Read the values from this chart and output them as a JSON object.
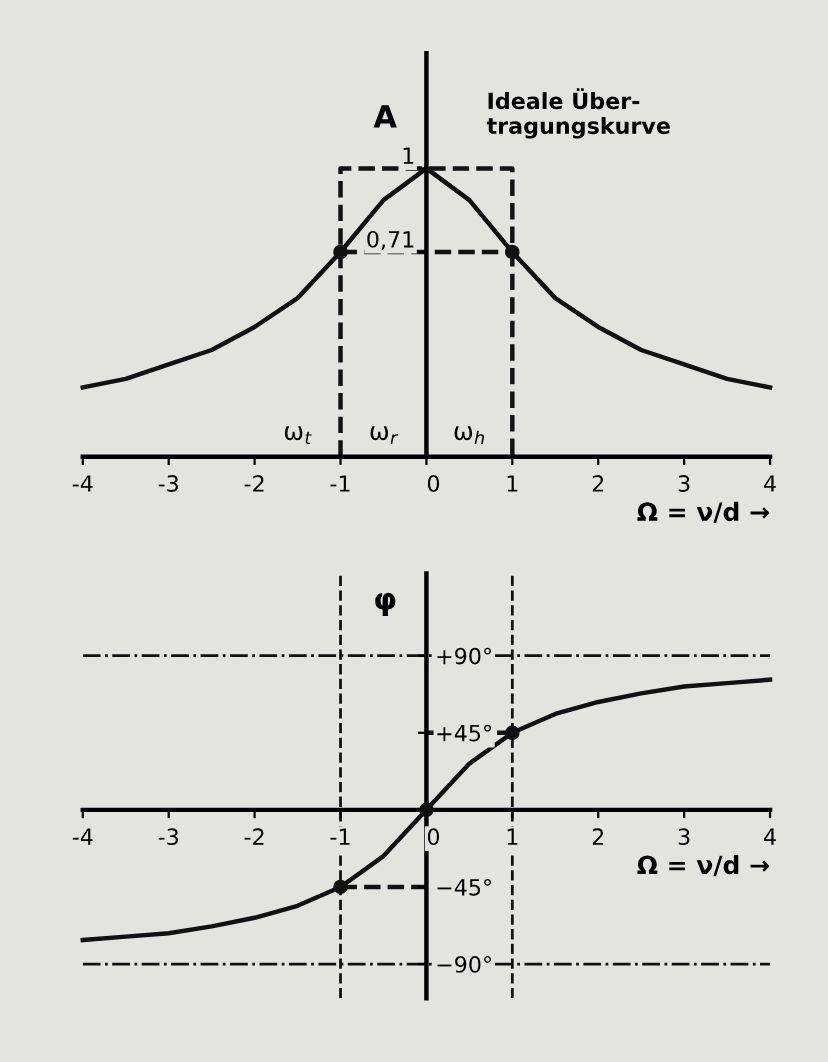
{
  "chart_data": [
    {
      "type": "line",
      "xlabel": "Ω = ν/d →",
      "ylabel": "A",
      "xlim": [
        -4,
        4
      ],
      "ylim": [
        0,
        1.4
      ],
      "xticks": [
        {
          "value": -4,
          "label": "-4"
        },
        {
          "value": -3,
          "label": "-3"
        },
        {
          "value": -2,
          "label": "-2"
        },
        {
          "value": -1,
          "label": "-1"
        },
        0,
        1,
        2,
        3,
        4
      ],
      "yticks": [
        {
          "value": 0.71,
          "label": "0,71"
        },
        1
      ],
      "grid": false,
      "legend": false,
      "series": [
        {
          "color": "#111111",
          "line_style": "solid",
          "x": [
            -4,
            -3.5,
            -3,
            -2.5,
            -2,
            -1.5,
            -1,
            -0.5,
            0,
            0.5,
            1,
            1.5,
            2,
            2.5,
            3,
            3.5,
            4
          ],
          "values": [
            0.24,
            0.27,
            0.32,
            0.37,
            0.45,
            0.55,
            0.71,
            0.89,
            1,
            0.89,
            0.71,
            0.55,
            0.45,
            0.37,
            0.32,
            0.27,
            0.24
          ]
        },
        {
          "color": "#111111",
          "line_style": "dashed",
          "x": [
            -1,
            -1,
            1,
            1
          ],
          "values": [
            0,
            1,
            1,
            0
          ]
        },
        {
          "color": "#111111",
          "line_style": "dashed",
          "x": [
            -1,
            1
          ],
          "values": [
            0.71,
            0.71
          ]
        },
        {
          "type": "scatter",
          "color": "#111111",
          "marker": "circle",
          "x": [
            -1,
            1
          ],
          "values": [
            0.71,
            0.71
          ]
        }
      ],
      "annotations": [
        {
          "text": "Ideale Über-\ntragungskurve",
          "x": 0.6,
          "y": 1
        },
        "ω$_{t}$",
        "ω$_{r}$",
        "ω$_{h}$"
      ]
    },
    {
      "type": "line",
      "xlabel": "Ω = ν/d →",
      "ylabel": "φ",
      "xlim": [
        -4,
        4
      ],
      "ylim": [
        -110,
        138
      ],
      "xticks": [
        {
          "value": -4,
          "label": "-4"
        },
        {
          "value": -3,
          "label": "-3"
        },
        {
          "value": -2,
          "label": "-2"
        },
        {
          "value": -1,
          "label": "-1"
        },
        0,
        1,
        2,
        3,
        4
      ],
      "yticks": [
        {
          "value": -90,
          "label": "−90°"
        },
        {
          "value": -45,
          "label": "−45°"
        },
        {
          "value": 45,
          "label": "+45°"
        },
        {
          "value": 90,
          "label": "+90°"
        }
      ],
      "grid": false,
      "legend": false,
      "ref_lines": [
        {
          "axis": "y",
          "value": 90,
          "line_style": "dashdot",
          "color": "#111111"
        },
        {
          "axis": "y",
          "value": -90,
          "line_style": "dashdot",
          "color": "#111111"
        },
        {
          "axis": "x",
          "value": -1,
          "line_style": "dashed",
          "color": "#111111"
        },
        {
          "axis": "x",
          "value": 1,
          "line_style": "dashed",
          "color": "#111111"
        }
      ],
      "series": [
        {
          "color": "#111111",
          "line_style": "solid",
          "x": [
            -4,
            -3.5,
            -3,
            -2.5,
            -2,
            -1.5,
            -1,
            -0.5,
            0,
            0.5,
            1,
            1.5,
            2,
            2.5,
            3,
            3.5,
            4
          ],
          "values": [
            -76,
            -74,
            -72,
            -68,
            -63,
            -56,
            -45,
            -27,
            0,
            27,
            45,
            56,
            63,
            68,
            72,
            74,
            76
          ]
        },
        {
          "color": "#111111",
          "line_style": "dashed",
          "x": [
            -1,
            0
          ],
          "values": [
            -45,
            -45
          ]
        },
        {
          "color": "#111111",
          "line_style": "dashed",
          "x": [
            0,
            1
          ],
          "values": [
            45,
            45
          ]
        },
        {
          "type": "scatter",
          "color": "#111111",
          "marker": "circle",
          "x": [
            -1,
            0,
            1
          ],
          "values": [
            -45,
            0,
            45
          ]
        }
      ]
    }
  ]
}
